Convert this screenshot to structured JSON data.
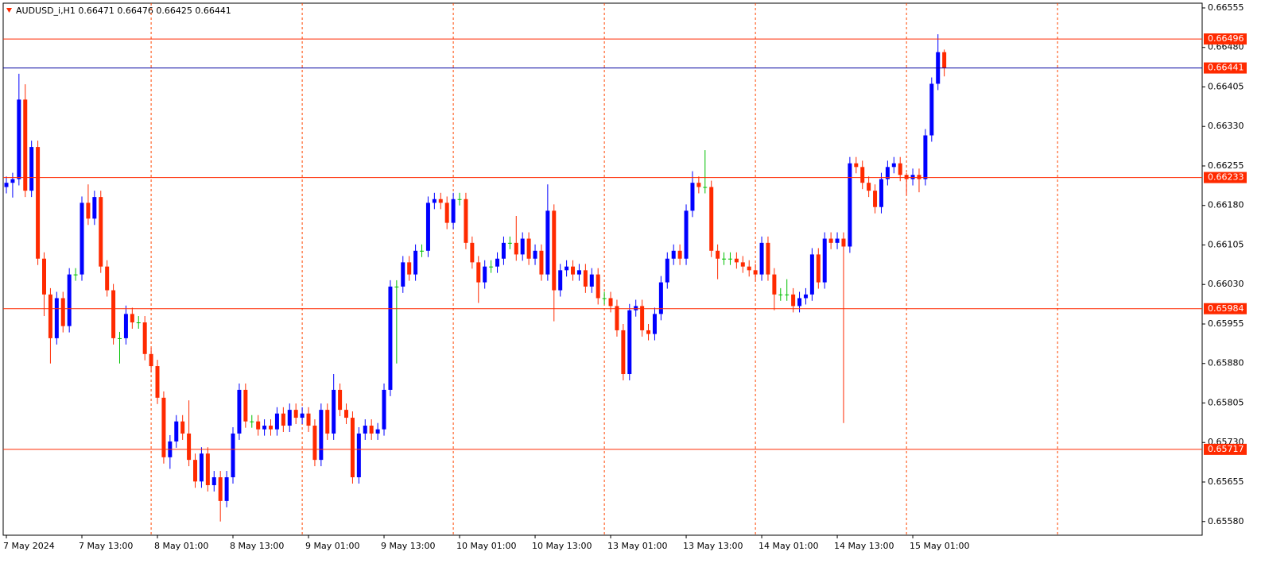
{
  "chart_data": {
    "type": "candlestick",
    "title": "AUDUSD_i,H1  0.66471 0.66476 0.66425 0.66441",
    "categories": [
      "7 May 2024",
      null,
      null,
      null,
      null,
      null,
      null,
      null,
      null,
      null,
      null,
      null,
      "7 May 13:00",
      null,
      null,
      null,
      null,
      null,
      null,
      null,
      null,
      null,
      null,
      null,
      "8 May 01:00",
      null,
      null,
      null,
      null,
      null,
      null,
      null,
      null,
      null,
      null,
      null,
      "8 May 13:00",
      null,
      null,
      null,
      null,
      null,
      null,
      null,
      null,
      null,
      null,
      null,
      "9 May 01:00",
      null,
      null,
      null,
      null,
      null,
      null,
      null,
      null,
      null,
      null,
      null,
      "9 May 13:00",
      null,
      null,
      null,
      null,
      null,
      null,
      null,
      null,
      null,
      null,
      null,
      "10 May 01:00",
      null,
      null,
      null,
      null,
      null,
      null,
      null,
      null,
      null,
      null,
      null,
      "10 May 13:00",
      null,
      null,
      null,
      null,
      null,
      null,
      null,
      null,
      null,
      null,
      null,
      "13 May 01:00",
      null,
      null,
      null,
      null,
      null,
      null,
      null,
      null,
      null,
      null,
      null,
      "13 May 13:00",
      null,
      null,
      null,
      null,
      null,
      null,
      null,
      null,
      null,
      null,
      null,
      "14 May 01:00",
      null,
      null,
      null,
      null,
      null,
      null,
      null,
      null,
      null,
      null,
      null,
      "14 May 13:00",
      null,
      null,
      null,
      null,
      null,
      null,
      null,
      null,
      null,
      null,
      null,
      "15 May 01:00",
      null,
      null,
      null,
      null,
      null
    ],
    "open": [
      0.66215,
      0.66223,
      0.6623,
      0.66381,
      0.66208,
      0.66291,
      0.66079,
      0.66011,
      0.65928,
      0.66004,
      0.65951,
      0.66049,
      0.66049,
      0.66185,
      0.66155,
      0.66196,
      0.66064,
      0.66019,
      0.65928,
      0.65928,
      0.65974,
      0.65958,
      0.65958,
      0.65898,
      0.65875,
      0.65815,
      0.65702,
      0.65732,
      0.6577,
      0.65747,
      0.65697,
      0.65656,
      0.65709,
      0.65649,
      0.65664,
      0.65619,
      0.65664,
      0.65747,
      0.6583,
      0.6577,
      0.6577,
      0.65755,
      0.65762,
      0.65755,
      0.65785,
      0.65762,
      0.65792,
      0.65777,
      0.65785,
      0.65762,
      0.65697,
      0.65792,
      0.65747,
      0.6583,
      0.65792,
      0.65777,
      0.65664,
      0.65747,
      0.65762,
      0.65747,
      0.65755,
      0.6583,
      0.66026,
      0.66026,
      0.66072,
      0.66049,
      0.66094,
      0.66094,
      0.66185,
      0.66192,
      0.66185,
      0.66147,
      0.66192,
      0.66192,
      0.66109,
      0.66072,
      0.66034,
      0.66064,
      0.66064,
      0.66079,
      0.66109,
      0.66109,
      0.66087,
      0.66117,
      0.66079,
      0.66094,
      0.66049,
      0.6617,
      0.66019,
      0.66057,
      0.66064,
      0.66049,
      0.66057,
      0.66026,
      0.66049,
      0.66004,
      0.66004,
      0.65989,
      0.65943,
      0.6586,
      0.65981,
      0.65989,
      0.65943,
      0.65936,
      0.65974,
      0.66034,
      0.66079,
      0.66094,
      0.66079,
      0.6617,
      0.66223,
      0.66215,
      0.66215,
      0.66094,
      0.66079,
      0.66079,
      0.66079,
      0.66072,
      0.66064,
      0.66057,
      0.66049,
      0.66109,
      0.66049,
      0.66011,
      0.66011,
      0.66011,
      0.65989,
      0.66004,
      0.66011,
      0.66087,
      0.66034,
      0.66117,
      0.66109,
      0.66117,
      0.66102,
      0.6626,
      0.66253,
      0.66223,
      0.66208,
      0.66177,
      0.6623,
      0.66253,
      0.6626,
      0.66238,
      0.6623,
      0.66238,
      0.6623,
      0.66313,
      0.66411,
      0.66471
    ],
    "high": [
      0.66235,
      0.66242,
      0.6643,
      0.6641,
      0.66303,
      0.66303,
      0.66091,
      0.66023,
      0.66016,
      0.66016,
      0.66061,
      0.66061,
      0.66197,
      0.6622,
      0.66208,
      0.66208,
      0.66076,
      0.66031,
      0.6594,
      0.6599,
      0.65986,
      0.6597,
      0.6597,
      0.6591,
      0.65887,
      0.65827,
      0.65744,
      0.65782,
      0.65782,
      0.6581,
      0.65709,
      0.65721,
      0.65721,
      0.65676,
      0.65676,
      0.65676,
      0.65759,
      0.65842,
      0.65842,
      0.65782,
      0.65782,
      0.65774,
      0.65774,
      0.65797,
      0.65797,
      0.65804,
      0.65804,
      0.65797,
      0.65797,
      0.65774,
      0.65804,
      0.65804,
      0.6586,
      0.65842,
      0.65804,
      0.65789,
      0.65759,
      0.65774,
      0.65774,
      0.65767,
      0.65842,
      0.66038,
      0.66038,
      0.66084,
      0.66084,
      0.66106,
      0.66106,
      0.66197,
      0.66204,
      0.66204,
      0.66197,
      0.66204,
      0.66204,
      0.66204,
      0.66121,
      0.66084,
      0.66076,
      0.66076,
      0.66091,
      0.66121,
      0.66121,
      0.6616,
      0.66129,
      0.66129,
      0.66106,
      0.66106,
      0.6622,
      0.66182,
      0.66069,
      0.66076,
      0.66076,
      0.66069,
      0.66069,
      0.66061,
      0.66061,
      0.66016,
      0.66016,
      0.66001,
      0.65955,
      0.65993,
      0.66001,
      0.66001,
      0.65955,
      0.65986,
      0.66046,
      0.66091,
      0.66106,
      0.66106,
      0.66182,
      0.66245,
      0.66235,
      0.66285,
      0.66227,
      0.66106,
      0.66091,
      0.66091,
      0.66091,
      0.66084,
      0.66076,
      0.66069,
      0.66121,
      0.66121,
      0.66061,
      0.66023,
      0.6604,
      0.66023,
      0.66016,
      0.66023,
      0.66099,
      0.66099,
      0.66129,
      0.66129,
      0.66129,
      0.66129,
      0.66272,
      0.66272,
      0.66265,
      0.66235,
      0.6622,
      0.66242,
      0.66265,
      0.66272,
      0.66272,
      0.66242,
      0.6625,
      0.6625,
      0.66325,
      0.66423,
      0.66505,
      0.66476
    ],
    "low": [
      0.66203,
      0.66195,
      0.66218,
      0.66196,
      0.66196,
      0.66067,
      0.6597,
      0.6588,
      0.65916,
      0.65939,
      0.65939,
      0.66037,
      0.66037,
      0.66143,
      0.66143,
      0.66052,
      0.66007,
      0.65916,
      0.6588,
      0.65916,
      0.65946,
      0.65946,
      0.65886,
      0.65863,
      0.65803,
      0.6569,
      0.6568,
      0.6572,
      0.65735,
      0.65685,
      0.65644,
      0.65644,
      0.65637,
      0.65637,
      0.6558,
      0.65607,
      0.65652,
      0.65735,
      0.65758,
      0.65758,
      0.65743,
      0.65743,
      0.65743,
      0.65743,
      0.6575,
      0.6575,
      0.65765,
      0.65765,
      0.6575,
      0.65685,
      0.65685,
      0.65735,
      0.65735,
      0.6578,
      0.65765,
      0.65652,
      0.65652,
      0.65735,
      0.65735,
      0.65735,
      0.65743,
      0.65818,
      0.6588,
      0.66014,
      0.66037,
      0.66037,
      0.66082,
      0.66082,
      0.66173,
      0.66173,
      0.66135,
      0.66135,
      0.6618,
      0.66097,
      0.6606,
      0.65995,
      0.66022,
      0.66052,
      0.66052,
      0.66067,
      0.66097,
      0.66075,
      0.66075,
      0.66067,
      0.66067,
      0.66037,
      0.66037,
      0.6596,
      0.66007,
      0.66045,
      0.66037,
      0.66037,
      0.66014,
      0.66014,
      0.65992,
      0.65992,
      0.65977,
      0.65931,
      0.65848,
      0.65848,
      0.65969,
      0.65931,
      0.65924,
      0.65924,
      0.65962,
      0.66022,
      0.66067,
      0.66067,
      0.66067,
      0.66158,
      0.66203,
      0.66203,
      0.66082,
      0.6604,
      0.66067,
      0.66067,
      0.6606,
      0.66052,
      0.66045,
      0.66037,
      0.66037,
      0.66037,
      0.65981,
      0.65999,
      0.65999,
      0.65977,
      0.65977,
      0.65992,
      0.65999,
      0.66022,
      0.66022,
      0.66097,
      0.66097,
      0.65767,
      0.6609,
      0.66241,
      0.66211,
      0.66196,
      0.66165,
      0.66165,
      0.66218,
      0.66241,
      0.66226,
      0.662,
      0.66218,
      0.66205,
      0.66218,
      0.66301,
      0.66399,
      0.66425
    ],
    "close": [
      0.66223,
      0.6623,
      0.66381,
      0.66208,
      0.66291,
      0.66079,
      0.66011,
      0.65928,
      0.66004,
      0.65951,
      0.66049,
      0.66049,
      0.66185,
      0.66155,
      0.66196,
      0.66064,
      0.66019,
      0.65928,
      0.65928,
      0.65974,
      0.65958,
      0.65958,
      0.65898,
      0.65875,
      0.65815,
      0.65702,
      0.65732,
      0.6577,
      0.65747,
      0.65697,
      0.65656,
      0.65709,
      0.65649,
      0.65664,
      0.65619,
      0.65664,
      0.65747,
      0.6583,
      0.6577,
      0.6577,
      0.65755,
      0.65762,
      0.65755,
      0.65785,
      0.65762,
      0.65792,
      0.65777,
      0.65785,
      0.65762,
      0.65697,
      0.65792,
      0.65747,
      0.6583,
      0.65792,
      0.65777,
      0.65664,
      0.65747,
      0.65762,
      0.65747,
      0.65755,
      0.6583,
      0.66026,
      0.66026,
      0.66072,
      0.66049,
      0.66094,
      0.66094,
      0.66185,
      0.66192,
      0.66185,
      0.66147,
      0.66192,
      0.66192,
      0.66109,
      0.66072,
      0.66034,
      0.66064,
      0.66064,
      0.66079,
      0.66109,
      0.66109,
      0.66087,
      0.66117,
      0.66079,
      0.66094,
      0.66049,
      0.6617,
      0.66019,
      0.66057,
      0.66064,
      0.66049,
      0.66057,
      0.66026,
      0.66049,
      0.66004,
      0.66004,
      0.65989,
      0.65943,
      0.6586,
      0.65981,
      0.65989,
      0.65943,
      0.65936,
      0.65974,
      0.66034,
      0.66079,
      0.66094,
      0.66079,
      0.6617,
      0.66223,
      0.66215,
      0.66215,
      0.66094,
      0.66079,
      0.66079,
      0.66079,
      0.66072,
      0.66064,
      0.66057,
      0.66049,
      0.66109,
      0.66049,
      0.66011,
      0.66011,
      0.66011,
      0.65989,
      0.66004,
      0.66011,
      0.66087,
      0.66034,
      0.66117,
      0.66109,
      0.66117,
      0.66102,
      0.6626,
      0.66253,
      0.66223,
      0.66208,
      0.66177,
      0.6623,
      0.66253,
      0.6626,
      0.66238,
      0.6623,
      0.66238,
      0.6623,
      0.66313,
      0.66411,
      0.66471,
      0.66441
    ],
    "up_color": "#0000ff",
    "down_color": "#ff2a00",
    "doji_color": "#00c000",
    "ylim": [
      0.65554,
      0.66564
    ],
    "yticks": [
      0.66555,
      {
        "value": 0.6648,
        "label": "0.66480"
      },
      0.66405,
      {
        "value": 0.6633,
        "label": "0.66330"
      },
      0.66255,
      {
        "value": 0.6618,
        "label": "0.66180"
      },
      0.66105,
      {
        "value": 0.6603,
        "label": "0.66030"
      },
      0.65955,
      {
        "value": 0.6588,
        "label": "0.65880"
      },
      0.65805,
      {
        "value": 0.6573,
        "label": "0.65730"
      },
      0.65655,
      {
        "value": 0.6558,
        "label": "0.65580"
      }
    ],
    "levels": [
      {
        "price": 0.66496,
        "color": "#ff2a00"
      },
      {
        "price": 0.66441,
        "color": "#0000a0"
      },
      {
        "price": 0.66233,
        "color": "#ff2a00"
      },
      {
        "price": 0.65984,
        "color": "#ff2a00"
      },
      {
        "price": 0.65717,
        "color": "#ff2a00"
      }
    ],
    "grid": true
  }
}
